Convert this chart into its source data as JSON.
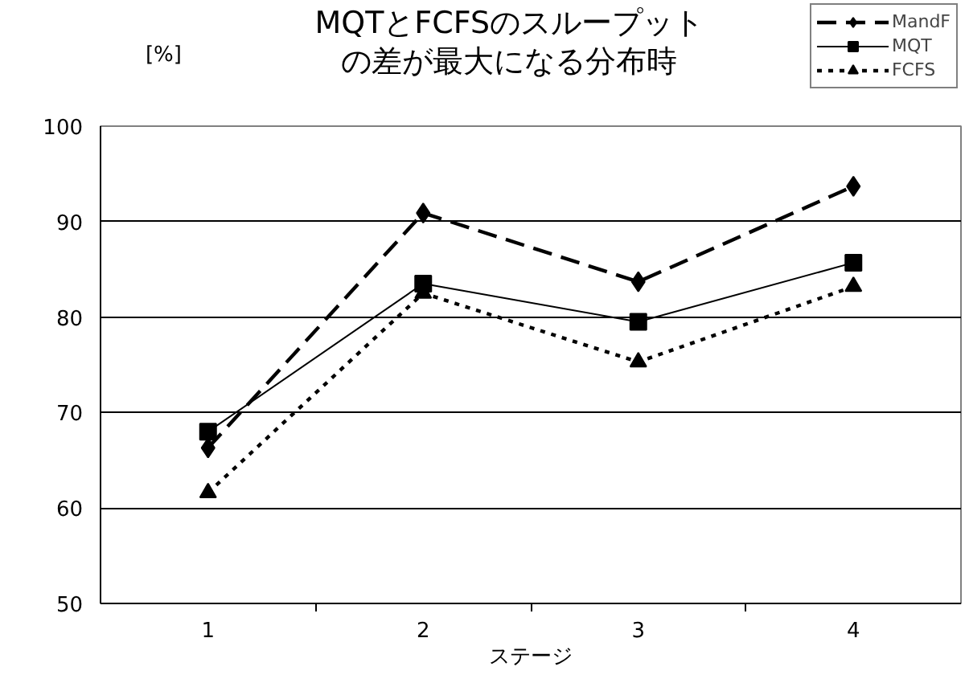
{
  "chart_data": {
    "type": "line",
    "title": "MQTとFCFSのスループットの差が最大になる分布時",
    "xlabel": "ステージ",
    "ylabel": "[%]",
    "categories": [
      "1",
      "2",
      "3",
      "4"
    ],
    "series": [
      {
        "name": "MandF",
        "color": "#000000",
        "values": [
          66.3,
          90.9,
          83.7,
          93.7
        ],
        "marker": "diamond",
        "line_style": "dashed"
      },
      {
        "name": "MQT",
        "color": "#000000",
        "values": [
          68.0,
          83.5,
          79.5,
          85.7
        ],
        "marker": "square",
        "line_style": "solid"
      },
      {
        "name": "FCFS",
        "color": "#000000",
        "values": [
          61.6,
          82.5,
          75.3,
          83.2
        ],
        "marker": "triangle",
        "line_style": "dotted"
      }
    ],
    "ylim": [
      50,
      100
    ],
    "yticks": [
      50,
      60,
      70,
      80,
      90,
      100
    ],
    "grid": "y",
    "legend": "top right"
  }
}
